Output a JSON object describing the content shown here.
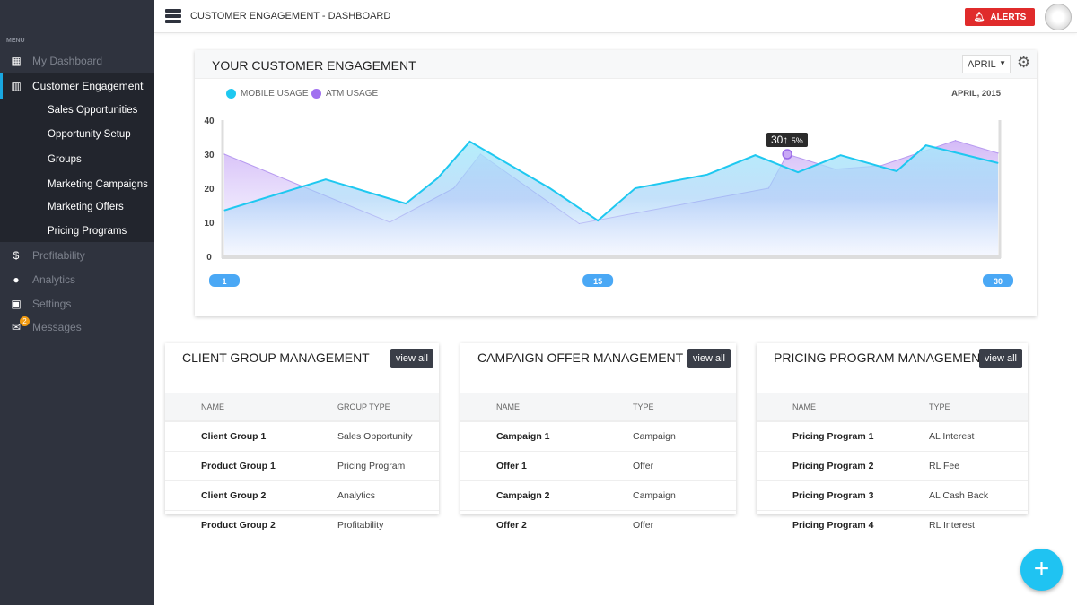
{
  "header": {
    "title": "CUSTOMER ENGAGEMENT - DASHBOARD",
    "alerts_label": "ALERTS"
  },
  "sidebar": {
    "menu_label": "MENU",
    "items": [
      {
        "label": "My Dashboard",
        "icon": "dashboard-icon"
      },
      {
        "label": "Customer Engagement",
        "icon": "building-icon",
        "active": true
      },
      {
        "label": "Profitability",
        "icon": "dollar-icon"
      },
      {
        "label": "Analytics",
        "icon": "analytics-icon"
      },
      {
        "label": "Settings",
        "icon": "settings-icon"
      },
      {
        "label": "Messages",
        "icon": "mail-icon",
        "badge": "2"
      }
    ],
    "subitems": [
      "Sales Opportunities",
      "Opportunity Setup",
      "Groups",
      "Marketing Campaigns",
      "Marketing Offers",
      "Pricing Programs"
    ]
  },
  "engagement": {
    "title": "YOUR CUSTOMER ENGAGEMENT",
    "month": "APRIL",
    "date_label": "APRIL, 2015",
    "tooltip_value": "30",
    "tooltip_change": "5%"
  },
  "chart_data": {
    "type": "area",
    "ylim": [
      0,
      40
    ],
    "yticks": [
      "0",
      "10",
      "20",
      "30",
      "40"
    ],
    "xlim": [
      1,
      30
    ],
    "xticks": [
      "1",
      "15",
      "30"
    ],
    "series": [
      {
        "name": "MOBILE USAGE",
        "color": "#1ec8f0",
        "x": [
          1,
          4.8,
          7.8,
          9,
          10.2,
          13.2,
          15,
          16.4,
          19.1,
          20.9,
          22.5,
          24.1,
          26.2,
          27.3,
          30
        ],
        "y": [
          13.5,
          22.6,
          15.5,
          23,
          33.7,
          20,
          10.5,
          20,
          24,
          29.7,
          24.7,
          29.7,
          25,
          32.6,
          27.4
        ]
      },
      {
        "name": "ATM USAGE",
        "color": "#a070f0",
        "x": [
          1,
          7.2,
          9.6,
          10.6,
          14.3,
          21.4,
          22.1,
          23.9,
          25.6,
          28.4,
          30
        ],
        "y": [
          30,
          10,
          20,
          30,
          9.6,
          20,
          30,
          25.6,
          26.6,
          34,
          30.3
        ]
      }
    ]
  },
  "tables": [
    {
      "title": "CLIENT GROUP MANAGEMENT",
      "view_all": "view all",
      "columns": [
        "NAME",
        "GROUP TYPE"
      ],
      "rows": [
        [
          "Client Group 1",
          "Sales Opportunity"
        ],
        [
          "Product Group 1",
          "Pricing Program"
        ],
        [
          "Client Group 2",
          "Analytics"
        ],
        [
          "Product Group 2",
          "Profitability"
        ]
      ]
    },
    {
      "title": "CAMPAIGN OFFER MANAGEMENT",
      "view_all": "view all",
      "columns": [
        "NAME",
        "TYPE"
      ],
      "rows": [
        [
          "Campaign 1",
          "Campaign"
        ],
        [
          "Offer 1",
          "Offer"
        ],
        [
          "Campaign 2",
          "Campaign"
        ],
        [
          "Offer 2",
          "Offer"
        ]
      ]
    },
    {
      "title": "PRICING PROGRAM MANAGEMENT",
      "view_all": "view all",
      "columns": [
        "NAME",
        "TYPE"
      ],
      "rows": [
        [
          "Pricing Program 1",
          "AL Interest"
        ],
        [
          "Pricing Program 2",
          "RL Fee"
        ],
        [
          "Pricing Program 3",
          "AL Cash Back"
        ],
        [
          "Pricing Program 4",
          "RL Interest"
        ]
      ]
    }
  ]
}
